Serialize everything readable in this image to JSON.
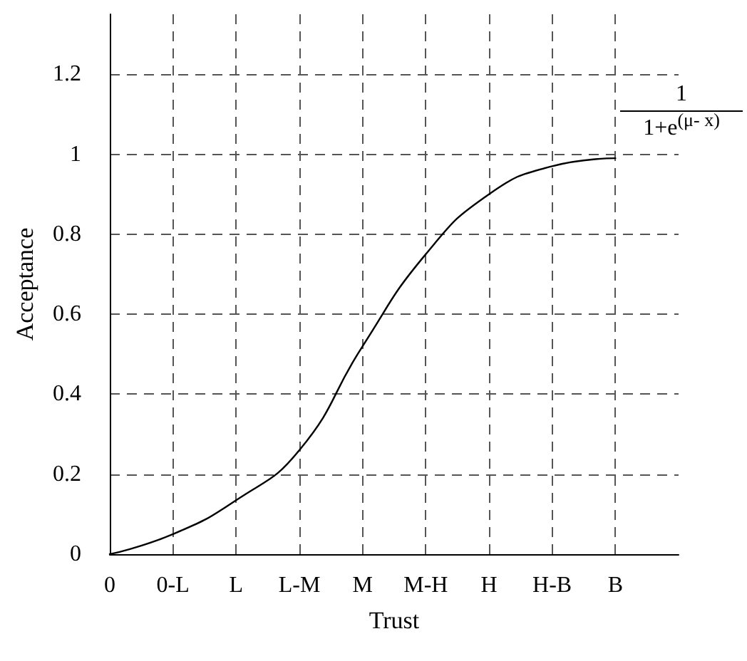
{
  "chart_data": {
    "type": "line",
    "xlabel": "Trust",
    "ylabel": "Acceptance",
    "annotations": [
      "1",
      "1+e$^{(μ- x)}$"
    ],
    "categories": [
      "0",
      "0-L",
      "L",
      "L-M",
      "M",
      "M-H",
      "H",
      "H-B",
      "B",
      null
    ],
    "series": [
      {
        "color": "#000000",
        "values": [
          0,
          0.05,
          0.135,
          0.26,
          0.52,
          0.75,
          0.9,
          0.97,
          0.99,
          null
        ]
      }
    ],
    "ylim": [
      0,
      1.35
    ],
    "yticks": [
      0,
      0.2,
      0.4,
      0.6,
      0.8,
      1,
      1.2
    ],
    "grid": true,
    "marker": "none",
    "line_style": "solid"
  }
}
